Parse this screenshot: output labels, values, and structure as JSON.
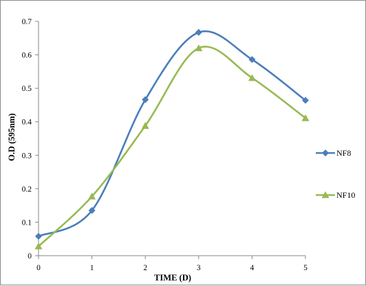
{
  "chart_data": {
    "type": "line",
    "title": "",
    "xlabel": "TIME (D)",
    "ylabel": "O.D (595nm)",
    "x": [
      0,
      1,
      2,
      3,
      4,
      5
    ],
    "xlim": [
      0,
      5
    ],
    "ylim": [
      0,
      0.7
    ],
    "yticks": [
      0,
      0.1,
      0.2,
      0.3,
      0.4,
      0.5,
      0.6,
      0.7
    ],
    "grid": false,
    "smooth": true,
    "legend_position": "right",
    "series": [
      {
        "name": "NF8",
        "values": [
          0.058,
          0.135,
          0.466,
          0.667,
          0.586,
          0.464
        ],
        "color": "#4a7ebb",
        "marker": "diamond"
      },
      {
        "name": "NF10",
        "values": [
          0.028,
          0.177,
          0.388,
          0.62,
          0.531,
          0.411
        ],
        "color": "#98b954",
        "marker": "triangle"
      }
    ]
  }
}
